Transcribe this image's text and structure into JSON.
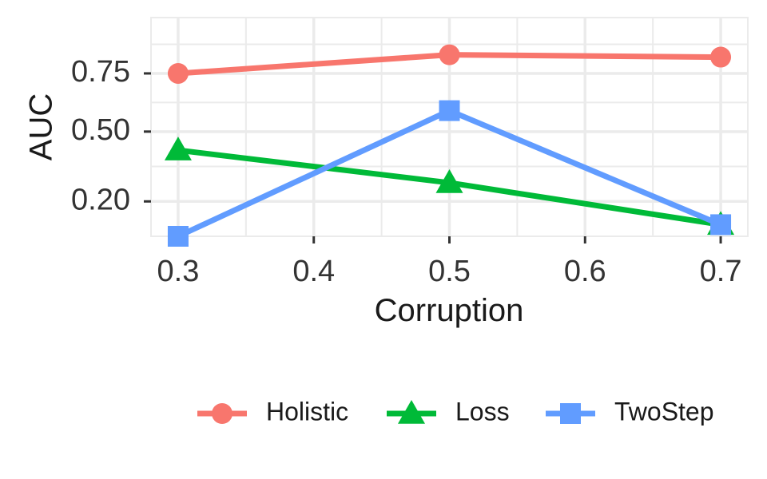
{
  "chart_data": {
    "type": "line",
    "xlabel": "Corruption",
    "ylabel": "AUC",
    "x": [
      0.3,
      0.5,
      0.7
    ],
    "xlim": [
      0.28,
      0.72
    ],
    "ylim": [
      0.05,
      0.99
    ],
    "x_ticks": [
      0.3,
      0.4,
      0.5,
      0.6,
      0.7
    ],
    "x_tick_labels": [
      "0.3",
      "0.4",
      "0.5",
      "0.6",
      "0.7"
    ],
    "y_ticks": [
      0.2,
      0.5,
      0.75
    ],
    "y_tick_labels": [
      "0.20",
      "0.50",
      "0.75"
    ],
    "grid": true,
    "legend_position": "bottom",
    "series": [
      {
        "name": "Holistic",
        "color": "#F8766D",
        "marker": "circle",
        "values": [
          0.75,
          0.83,
          0.82
        ]
      },
      {
        "name": "Loss",
        "color": "#00BA38",
        "marker": "triangle",
        "values": [
          0.42,
          0.28,
          0.1
        ]
      },
      {
        "name": "TwoStep",
        "color": "#619CFF",
        "marker": "square",
        "values": [
          0.05,
          0.59,
          0.1
        ]
      }
    ]
  }
}
